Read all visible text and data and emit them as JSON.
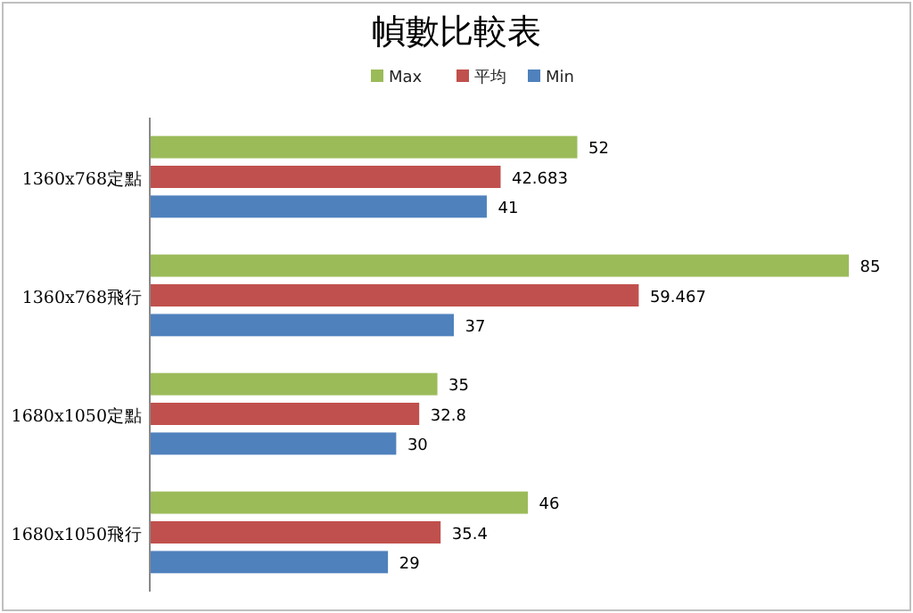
{
  "chart_data": {
    "type": "bar",
    "orientation": "horizontal",
    "title": "幀數比較表",
    "legend": "top",
    "data_labels": true,
    "categories": [
      "1360x768定點",
      "1360x768飛行",
      "1680x1050定點",
      "1680x1050飛行"
    ],
    "series": [
      {
        "name": "Max",
        "color": "#9bbb59",
        "values": [
          52,
          85,
          35,
          46
        ]
      },
      {
        "name": "平均",
        "color": "#c0504d",
        "values": [
          42.683,
          59.467,
          32.8,
          35.4
        ]
      },
      {
        "name": "Min",
        "color": "#4f81bd",
        "values": [
          41,
          37,
          30,
          29
        ]
      }
    ]
  }
}
